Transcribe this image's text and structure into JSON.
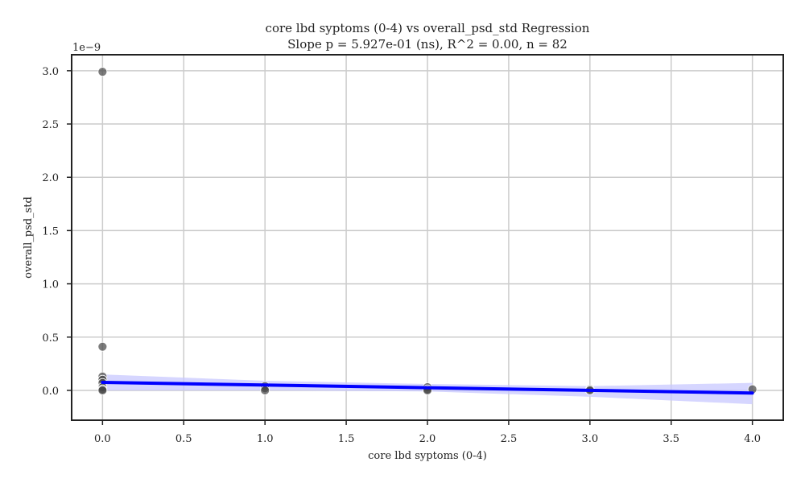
{
  "chart_data": {
    "type": "scatter",
    "title": "core lbd syptoms (0-4) vs overall_psd_std Regression",
    "subtitle": "Slope p = 5.927e-01 (ns), R^2 = 0.00, n = 82",
    "xlabel": "core lbd syptoms (0-4)",
    "ylabel": "overall_psd_std",
    "y_offset_label": "1e−9",
    "xlim": [
      -0.19,
      4.19
    ],
    "ylim": [
      -0.28,
      3.15
    ],
    "x_ticks": [
      0.0,
      0.5,
      1.0,
      1.5,
      2.0,
      2.5,
      3.0,
      3.5,
      4.0
    ],
    "x_tick_labels": [
      "0.0",
      "0.5",
      "1.0",
      "1.5",
      "2.0",
      "2.5",
      "3.0",
      "3.5",
      "4.0"
    ],
    "y_ticks": [
      0.0,
      0.5,
      1.0,
      1.5,
      2.0,
      2.5,
      3.0
    ],
    "y_tick_labels": [
      "0.0",
      "0.5",
      "1.0",
      "1.5",
      "2.0",
      "2.5",
      "3.0"
    ],
    "grid": true,
    "points": [
      {
        "x": 0,
        "y": 2.99
      },
      {
        "x": 0,
        "y": 0.41
      },
      {
        "x": 0,
        "y": 0.13
      },
      {
        "x": 0,
        "y": 0.1
      },
      {
        "x": 0,
        "y": 0.07
      },
      {
        "x": 0,
        "y": 0.03
      },
      {
        "x": 0,
        "y": 0.01
      },
      {
        "x": 0,
        "y": 0.0
      },
      {
        "x": 1,
        "y": 0.04
      },
      {
        "x": 1,
        "y": 0.02
      },
      {
        "x": 1,
        "y": 0.0
      },
      {
        "x": 2,
        "y": 0.03
      },
      {
        "x": 2,
        "y": 0.01
      },
      {
        "x": 2,
        "y": 0.0
      },
      {
        "x": 3,
        "y": 0.01
      },
      {
        "x": 3,
        "y": 0.0
      },
      {
        "x": 4,
        "y": 0.01
      }
    ],
    "regression_line": {
      "x": [
        0,
        4
      ],
      "y": [
        0.075,
        -0.025
      ]
    },
    "confidence_band": {
      "x": [
        0,
        1,
        2,
        3,
        4
      ],
      "lower": [
        0.0,
        0.0,
        -0.01,
        -0.06,
        -0.13
      ],
      "upper": [
        0.15,
        0.09,
        0.06,
        0.04,
        0.07
      ]
    },
    "colors": {
      "points": "#444444",
      "line": "#0000ff",
      "band": "#c8c8ff",
      "grid": "#cccccc",
      "axes": "#222222"
    }
  }
}
